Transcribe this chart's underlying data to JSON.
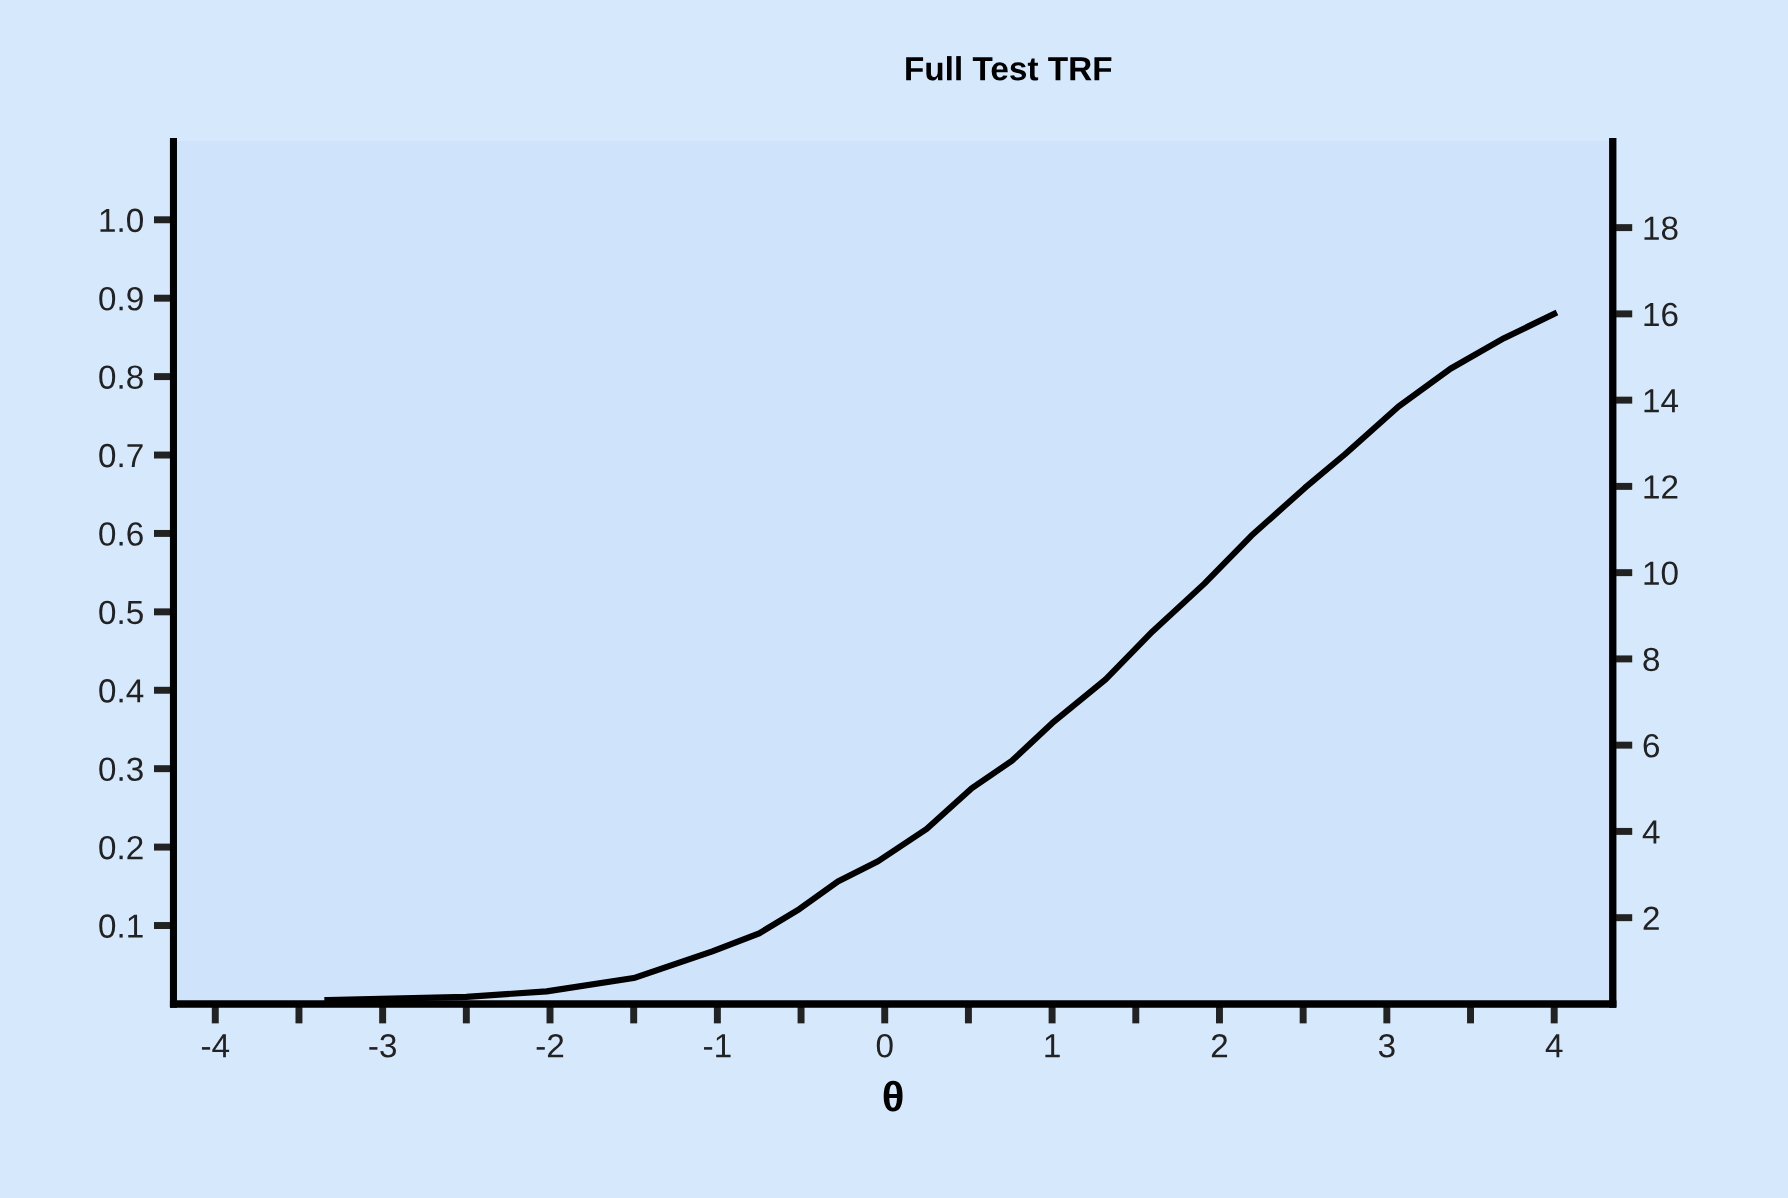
{
  "chart_data": {
    "type": "line",
    "title": "Full Test TRF",
    "xlabel": "θ",
    "xlim": [
      -4.25,
      4.35
    ],
    "ylim": [
      0,
      1.1
    ],
    "y2lim": [
      0,
      20
    ],
    "xticks": [
      -4,
      {
        "value": -3.5,
        "label": null
      },
      -3,
      {
        "value": -2.5,
        "label": null
      },
      -2,
      {
        "value": -1.5,
        "label": null
      },
      -1,
      {
        "value": -0.5,
        "label": null
      },
      0,
      {
        "value": 0.5,
        "label": null
      },
      1,
      {
        "value": 1.5,
        "label": null
      },
      2,
      {
        "value": 2.5,
        "label": null
      },
      3,
      {
        "value": 3.5,
        "label": null
      },
      4
    ],
    "yticks": [
      0.1,
      0.2,
      0.3,
      0.4,
      0.5,
      0.6,
      0.7,
      0.8,
      0.9,
      {
        "value": 1.0,
        "label": "1.0"
      }
    ],
    "y2ticks": [
      2,
      4,
      6,
      8,
      10,
      12,
      14,
      16,
      18
    ],
    "grid": false,
    "legend": false,
    "marker": "none",
    "line_style": "solid",
    "series": [
      {
        "color": "#000000",
        "x": [
          -3.33,
          -2.5,
          -2.02,
          -1.5,
          -1.03,
          -0.75,
          -0.51,
          -0.28,
          -0.04,
          0.25,
          0.52,
          0.76,
          1.0,
          1.32,
          1.6,
          1.91,
          2.19,
          2.51,
          2.75,
          3.07,
          3.38,
          3.7,
          4.0
        ],
        "values": [
          0.005,
          0.009,
          0.016,
          0.033,
          0.067,
          0.09,
          0.121,
          0.156,
          0.182,
          0.223,
          0.275,
          0.31,
          0.358,
          0.414,
          0.475,
          0.536,
          0.597,
          0.658,
          0.701,
          0.762,
          0.81,
          0.849,
          0.88
        ]
      }
    ]
  }
}
